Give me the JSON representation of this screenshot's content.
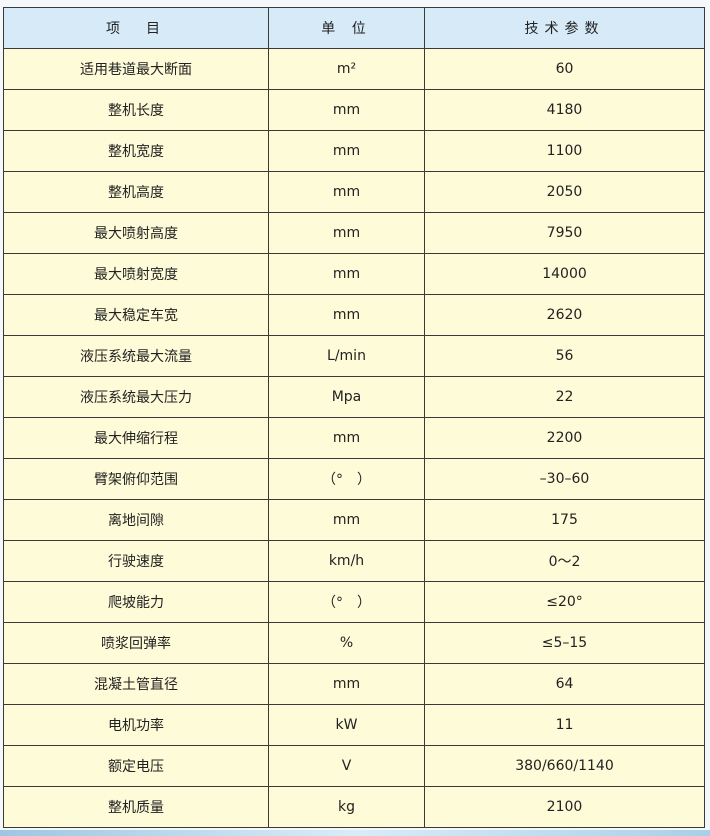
{
  "header": {
    "item": "项　目",
    "unit": "单 位",
    "param": "技术参数"
  },
  "rows": [
    {
      "item": "适用巷道最大断面",
      "unit": "m²",
      "value": "60"
    },
    {
      "item": "整机长度",
      "unit": "mm",
      "value": "4180"
    },
    {
      "item": "整机宽度",
      "unit": "mm",
      "value": "1100"
    },
    {
      "item": "整机高度",
      "unit": "mm",
      "value": "2050"
    },
    {
      "item": "最大喷射高度",
      "unit": "mm",
      "value": "7950"
    },
    {
      "item": "最大喷射宽度",
      "unit": "mm",
      "value": "14000"
    },
    {
      "item": "最大稳定车宽",
      "unit": "mm",
      "value": "2620"
    },
    {
      "item": "液压系统最大流量",
      "unit": "L/min",
      "value": "56"
    },
    {
      "item": "液压系统最大压力",
      "unit": "Mpa",
      "value": "22"
    },
    {
      "item": "最大伸缩行程",
      "unit": "mm",
      "value": "2200"
    },
    {
      "item": "臂架俯仰范围",
      "unit": "（°　）",
      "value": "–30–60"
    },
    {
      "item": "离地间隙",
      "unit": "mm",
      "value": "175"
    },
    {
      "item": "行驶速度",
      "unit": "km/h",
      "value": "0～2"
    },
    {
      "item": "爬坡能力",
      "unit": "（°　）",
      "value": "≤20°"
    },
    {
      "item": "喷浆回弹率",
      "unit": "%",
      "value": "≤5–15"
    },
    {
      "item": "混凝土管直径",
      "unit": "mm",
      "value": "64"
    },
    {
      "item": "电机功率",
      "unit": "kW",
      "value": "11"
    },
    {
      "item": "额定电压",
      "unit": "V",
      "value": "380/660/1140"
    },
    {
      "item": "整机质量",
      "unit": "kg",
      "value": "2100"
    }
  ]
}
